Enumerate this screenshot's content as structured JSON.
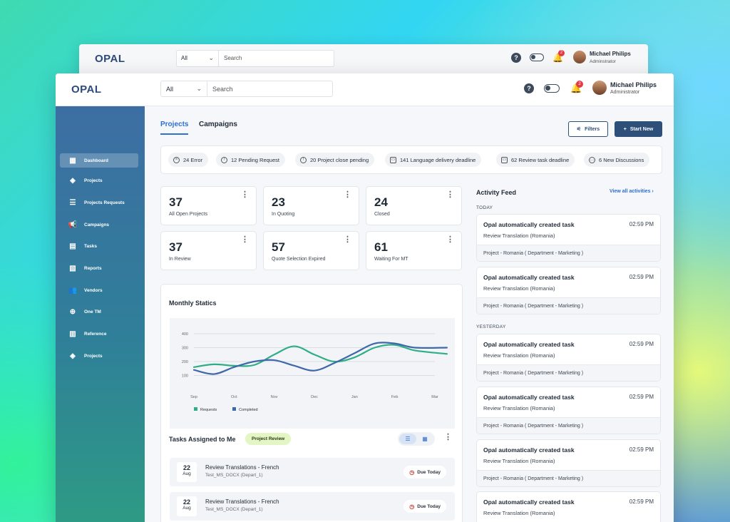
{
  "back_window": {
    "logo": "OPAL",
    "select_value": "All",
    "search_placeholder": "Search",
    "notification_count": "2",
    "user_name": "Michael Philips",
    "user_role": "Adminstrator"
  },
  "header": {
    "logo": "OPAL",
    "select_value": "All",
    "search_placeholder": "Search",
    "notification_count": "2",
    "user_name": "Michael Philips",
    "user_role": "Administrator"
  },
  "sidebar": {
    "items": [
      {
        "label": "Dashboard",
        "icon": "dashboard-icon",
        "glyph": "▦"
      },
      {
        "label": "Projects",
        "icon": "layers-icon",
        "glyph": "◈"
      },
      {
        "label": "Projects Requests",
        "icon": "list-icon",
        "glyph": "☰"
      },
      {
        "label": "Campaigns",
        "icon": "megaphone-icon",
        "glyph": "📢"
      },
      {
        "label": "Tasks",
        "icon": "tasks-icon",
        "glyph": "▤"
      },
      {
        "label": "Reports",
        "icon": "report-icon",
        "glyph": "▧"
      },
      {
        "label": "Vendors",
        "icon": "users-icon",
        "glyph": "👥"
      },
      {
        "label": "One TM",
        "icon": "globe-icon",
        "glyph": "⊕"
      },
      {
        "label": "Reference",
        "icon": "document-icon",
        "glyph": "▥"
      },
      {
        "label": "Projects",
        "icon": "layers-icon",
        "glyph": "◈"
      }
    ]
  },
  "tabs": {
    "projects": "Projects",
    "campaigns": "Campaigns"
  },
  "actions": {
    "filters": "Filters",
    "start_new": "Start New"
  },
  "chips": [
    {
      "label": "24 Error",
      "icon": "error-icon",
      "glyph": "×"
    },
    {
      "label": "12 Pending Request",
      "icon": "info-icon",
      "glyph": "!"
    },
    {
      "label": "20 Project close pending",
      "icon": "info-icon",
      "glyph": "!"
    },
    {
      "label": "141 Language delivery deadline",
      "icon": "calendar-icon",
      "glyph": "▭"
    },
    {
      "label": "62 Review task deadline",
      "icon": "calendar-icon",
      "glyph": "▭"
    },
    {
      "label": "6 New Discussions",
      "icon": "chat-icon",
      "glyph": "…"
    }
  ],
  "stats": [
    {
      "value": "37",
      "label": "All Open Projects"
    },
    {
      "value": "23",
      "label": "In Quoting"
    },
    {
      "value": "24",
      "label": "Closed"
    },
    {
      "value": "37",
      "label": "In Review"
    },
    {
      "value": "57",
      "label": "Quote Selection Expired"
    },
    {
      "value": "61",
      "label": "Waiting For MT"
    }
  ],
  "chart_title": "Monthly Statics",
  "chart_data": {
    "type": "line",
    "title": "",
    "xlabel": "",
    "ylabel": "",
    "categories": [
      "Sep",
      "Oct",
      "Nov",
      "Dec",
      "Jan",
      "Feb",
      "Mar"
    ],
    "yticks": [
      100,
      200,
      300,
      400
    ],
    "ylim": [
      0,
      400
    ],
    "x": [
      0,
      0.5,
      1,
      1.5,
      2,
      2.5,
      3,
      3.5,
      4,
      4.5,
      5,
      5.5,
      6.3
    ],
    "series": [
      {
        "name": "Requests",
        "color": "#2fae86",
        "values": [
          160,
          180,
          170,
          175,
          250,
          310,
          250,
          200,
          230,
          300,
          320,
          280,
          255
        ]
      },
      {
        "name": "Completed",
        "color": "#3f68a8",
        "values": [
          140,
          110,
          160,
          200,
          210,
          170,
          135,
          190,
          260,
          330,
          330,
          300,
          300
        ]
      }
    ],
    "legend_position": "bottom-left",
    "grid": true
  },
  "tasks": {
    "title": "Tasks Assigned to Me",
    "tag": "Project Review",
    "items": [
      {
        "day": "22",
        "month": "Aug",
        "title": "Review Translations - French",
        "subtitle": "Test_MS_DOCX (Depart_1)",
        "status": "Due Today"
      },
      {
        "day": "22",
        "month": "Aug",
        "title": "Review Translations - French",
        "subtitle": "Test_MS_DOCX (Depart_1)",
        "status": "Due Today"
      }
    ]
  },
  "feed": {
    "title": "Activity Feed",
    "view_all": "View all activities",
    "today_label": "TODAY",
    "yesterday_label": "YESTERDAY",
    "items": [
      {
        "title": "Opal automatically created task",
        "time": "02:59 PM",
        "subtitle": "Review  Translation (Romania)",
        "footer": "Project - Romania ( Department - Marketing )"
      },
      {
        "title": "Opal automatically created task",
        "time": "02:59 PM",
        "subtitle": "Review  Translation (Romania)",
        "footer": "Project - Romania ( Department - Marketing )"
      },
      {
        "title": "Opal automatically created task",
        "time": "02:59 PM",
        "subtitle": "Review  Translation (Romania)",
        "footer": "Project - Romania ( Department - Marketing )"
      },
      {
        "title": "Opal automatically created task",
        "time": "02:59 PM",
        "subtitle": "Review  Translation (Romania)",
        "footer": "Project - Romania ( Department - Marketing )"
      },
      {
        "title": "Opal automatically created task",
        "time": "02:59 PM",
        "subtitle": "Review  Translation (Romania)",
        "footer": "Project - Romania ( Department - Marketing )"
      },
      {
        "title": "Opal automatically created task",
        "time": "02:59 PM",
        "subtitle": "Review  Translation (Romania)",
        "footer": ""
      }
    ]
  }
}
